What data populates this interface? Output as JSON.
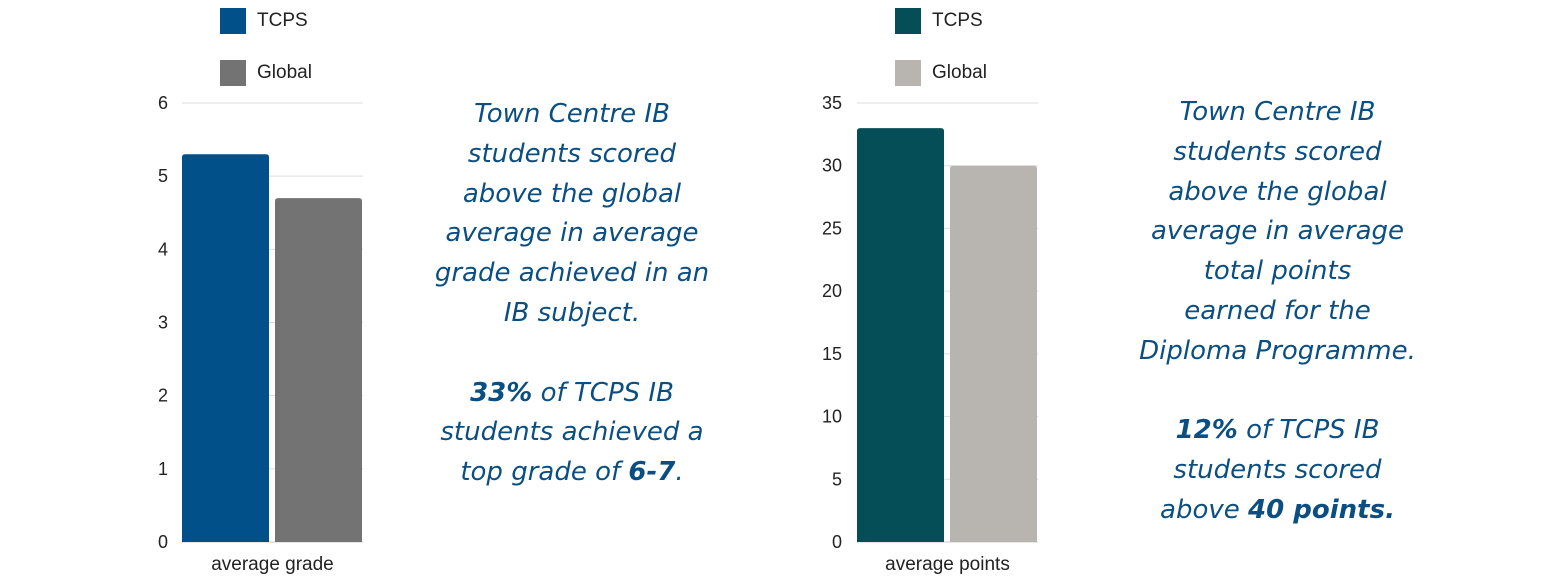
{
  "chart_data": [
    {
      "type": "bar",
      "categories": [
        "average grade"
      ],
      "series": [
        {
          "name": "TCPS",
          "values": [
            5.3
          ],
          "color": "#02508a"
        },
        {
          "name": "Global",
          "values": [
            4.7
          ],
          "color": "#737373"
        }
      ],
      "ylim": [
        0,
        6
      ],
      "yticks": [
        0,
        1,
        2,
        3,
        4,
        5,
        6
      ],
      "grid": true,
      "legend_position": "top"
    },
    {
      "type": "bar",
      "categories": [
        "average points"
      ],
      "series": [
        {
          "name": "TCPS",
          "values": [
            33
          ],
          "color": "#054e57"
        },
        {
          "name": "Global",
          "values": [
            30
          ],
          "color": "#b8b5b0"
        }
      ],
      "ylim": [
        0,
        35
      ],
      "yticks": [
        0,
        5,
        10,
        15,
        20,
        25,
        30,
        35
      ],
      "grid": true,
      "legend_position": "top"
    }
  ],
  "callouts": {
    "left": {
      "lines": [
        "Town Centre IB",
        "students scored",
        "above the global",
        "average in average",
        "grade achieved in an",
        "IB subject."
      ],
      "stat": {
        "bold1": "33%",
        "mid1": " of TCPS IB",
        "line2": "students achieved a",
        "pre3": "top grade of ",
        "bold3": "6-7",
        "post3": "."
      }
    },
    "right": {
      "lines": [
        "Town Centre IB",
        "students scored",
        "above the global",
        "average in average",
        "total points",
        "earned for the",
        "Diploma Programme."
      ],
      "stat": {
        "bold1": "12%",
        "mid1": " of TCPS IB",
        "line2": "students scored",
        "pre3": "above ",
        "bold3": "40 points.",
        "post3": ""
      }
    }
  },
  "colors": {
    "callout_text": "#0b4f82",
    "gridline": "#dddddd",
    "text": "#222222"
  }
}
